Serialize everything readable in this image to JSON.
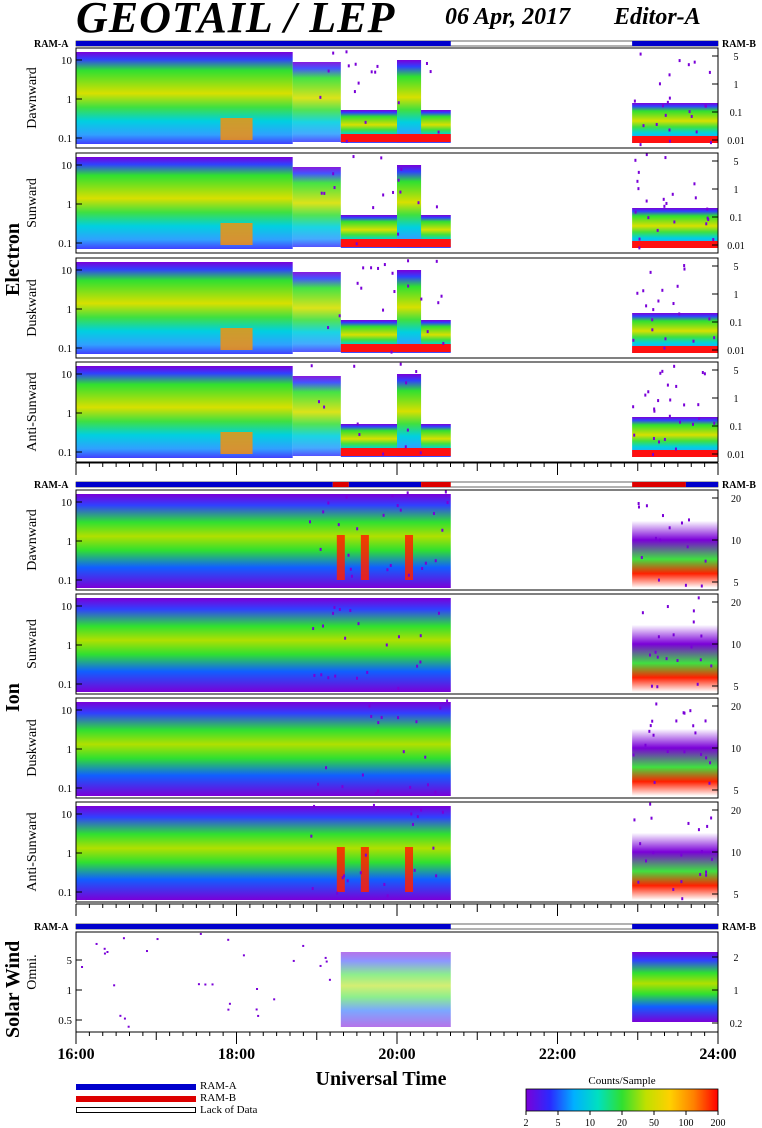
{
  "header": {
    "title": "GEOTAIL / LEP",
    "date": "06 Apr, 2017",
    "editor": "Editor-A"
  },
  "groups": {
    "electron": "Electron",
    "ion": "Ion",
    "solar_wind": "Solar Wind"
  },
  "ram_labels": {
    "a": "RAM-A",
    "b": "RAM-B"
  },
  "legend": {
    "ram_a": "RAM-A",
    "ram_b": "RAM-B",
    "lack": "Lack of Data",
    "colors": {
      "ram_a": "#0000cc",
      "ram_b": "#dd0000"
    }
  },
  "colorbar": {
    "title": "Counts/Sample",
    "ticks": [
      "2",
      "5",
      "10",
      "20",
      "50",
      "100",
      "200"
    ],
    "colors": [
      "#7a00d8",
      "#2a2aff",
      "#00b0ff",
      "#00e0c0",
      "#30e030",
      "#c0e000",
      "#ffd000",
      "#ff8000",
      "#ff0000"
    ]
  },
  "chart_data": {
    "type": "heatmap",
    "xlabel": "Universal Time",
    "x_ticks": [
      "16:00",
      "18:00",
      "20:00",
      "22:00",
      "24:00"
    ],
    "x_range_hours": [
      16,
      24
    ],
    "data_gap_hours": [
      20.67,
      22.93
    ],
    "electron_panels": [
      {
        "name": "Dawnward",
        "left_ticks": [
          "10",
          "1",
          "0.1"
        ],
        "right_ticks": [
          "5",
          "1",
          "0.1",
          "0.01"
        ]
      },
      {
        "name": "Sunward",
        "left_ticks": [
          "10",
          "1",
          "0.1"
        ],
        "right_ticks": [
          "5",
          "1",
          "0.1",
          "0.01"
        ]
      },
      {
        "name": "Duskward",
        "left_ticks": [
          "10",
          "1",
          "0.1"
        ],
        "right_ticks": [
          "5",
          "1",
          "0.1",
          "0.01"
        ]
      },
      {
        "name": "Anti-Sunward",
        "left_ticks": [
          "10",
          "1",
          "0.1"
        ],
        "right_ticks": [
          "5",
          "1",
          "0.1",
          "0.01"
        ]
      }
    ],
    "ion_panels": [
      {
        "name": "Dawnward",
        "left_ticks": [
          "10",
          "1",
          "0.1"
        ],
        "right_ticks": [
          "20",
          "10",
          "5"
        ]
      },
      {
        "name": "Sunward",
        "left_ticks": [
          "10",
          "1",
          "0.1"
        ],
        "right_ticks": [
          "20",
          "10",
          "5"
        ]
      },
      {
        "name": "Duskward",
        "left_ticks": [
          "10",
          "1",
          "0.1"
        ],
        "right_ticks": [
          "20",
          "10",
          "5"
        ]
      },
      {
        "name": "Anti-Sunward",
        "left_ticks": [
          "10",
          "1",
          "0.1"
        ],
        "right_ticks": [
          "20",
          "10",
          "5"
        ]
      }
    ],
    "solar_wind_panel": {
      "name": "Omni.",
      "left_ticks": [
        "5",
        "1",
        "0.5"
      ],
      "right_ticks": [
        "2",
        "1",
        "0.2"
      ]
    }
  }
}
